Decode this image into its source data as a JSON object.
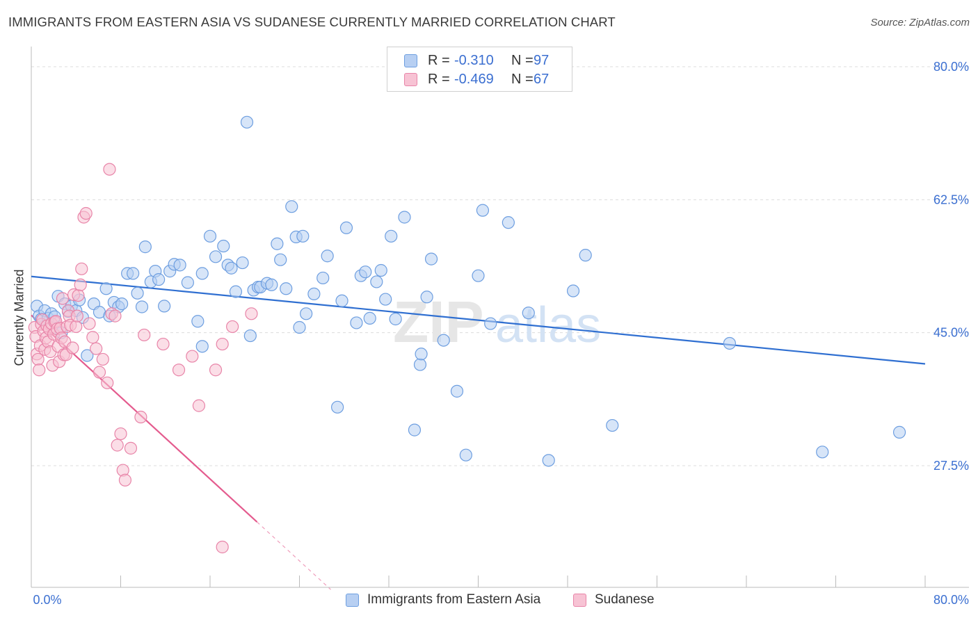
{
  "title": "IMMIGRANTS FROM EASTERN ASIA VS SUDANESE CURRENTLY MARRIED CORRELATION CHART",
  "source": "Source: ZipAtlas.com",
  "watermark": {
    "zip": "ZIP",
    "atlas": "atlas"
  },
  "legend": {
    "rows": [
      {
        "r_label": "R =",
        "r_value": "-0.310",
        "n_label": "N =",
        "n_value": "97"
      },
      {
        "r_label": "R =",
        "r_value": "-0.469",
        "n_label": "N =",
        "n_value": "67"
      }
    ]
  },
  "bottom_legend": [
    "Immigrants from Eastern Asia",
    "Sudanese"
  ],
  "colors": {
    "blue_fill": "#b7cff2",
    "blue_stroke": "#6d9ee0",
    "blue_line": "#2f6fd1",
    "pink_fill": "#f7c3d4",
    "pink_stroke": "#e884a8",
    "pink_line": "#e45b8e",
    "tick_label": "#3b6fd1",
    "grid": "#dcdcdc"
  },
  "chart_data": {
    "type": "scatter",
    "title": "IMMIGRANTS FROM EASTERN ASIA VS SUDANESE CURRENTLY MARRIED CORRELATION CHART",
    "xlabel": "",
    "ylabel": "Currently Married",
    "xlim": [
      0,
      80
    ],
    "ylim": [
      10,
      83
    ],
    "x_tick_labels": [
      "0.0%",
      "80.0%"
    ],
    "y_ticks": [
      27.5,
      45.0,
      62.5,
      80.0
    ],
    "y_tick_labels": [
      "27.5%",
      "45.0%",
      "62.5%",
      "80.0%"
    ],
    "grid": true,
    "legend_position": "top-center",
    "series": [
      {
        "name": "Immigrants from Eastern Asia",
        "color": "#b7cff2",
        "points": [
          [
            0.5,
            48.5
          ],
          [
            0.7,
            47.2
          ],
          [
            0.9,
            46.8
          ],
          [
            1.2,
            47.9
          ],
          [
            1.5,
            46.9
          ],
          [
            1.8,
            47.5
          ],
          [
            2.1,
            47.1
          ],
          [
            2.4,
            49.8
          ],
          [
            2.7,
            45.0
          ],
          [
            3.0,
            48.8
          ],
          [
            3.3,
            47.8
          ],
          [
            3.6,
            48.5
          ],
          [
            4.0,
            47.9
          ],
          [
            4.3,
            49.3
          ],
          [
            4.6,
            47.0
          ],
          [
            5.0,
            42.0
          ],
          [
            5.6,
            48.8
          ],
          [
            6.1,
            47.7
          ],
          [
            6.7,
            50.8
          ],
          [
            7.0,
            47.2
          ],
          [
            7.4,
            49.0
          ],
          [
            7.8,
            48.4
          ],
          [
            8.1,
            48.8
          ],
          [
            8.6,
            52.8
          ],
          [
            9.1,
            52.8
          ],
          [
            9.5,
            50.2
          ],
          [
            9.9,
            48.4
          ],
          [
            10.2,
            56.3
          ],
          [
            10.7,
            51.7
          ],
          [
            11.1,
            53.1
          ],
          [
            11.4,
            52.0
          ],
          [
            11.9,
            48.5
          ],
          [
            12.4,
            53.1
          ],
          [
            12.8,
            54.0
          ],
          [
            13.3,
            53.9
          ],
          [
            14.0,
            51.6
          ],
          [
            14.9,
            46.5
          ],
          [
            15.3,
            52.8
          ],
          [
            15.3,
            43.2
          ],
          [
            16.0,
            57.7
          ],
          [
            16.5,
            55.0
          ],
          [
            17.2,
            56.4
          ],
          [
            17.6,
            53.9
          ],
          [
            17.9,
            53.5
          ],
          [
            18.3,
            50.4
          ],
          [
            18.9,
            54.2
          ],
          [
            19.3,
            72.7
          ],
          [
            19.6,
            44.6
          ],
          [
            19.9,
            50.6
          ],
          [
            20.3,
            51.0
          ],
          [
            20.5,
            51.0
          ],
          [
            21.1,
            51.5
          ],
          [
            21.5,
            51.3
          ],
          [
            22.0,
            56.7
          ],
          [
            22.3,
            54.6
          ],
          [
            22.8,
            50.8
          ],
          [
            23.3,
            61.6
          ],
          [
            23.7,
            57.6
          ],
          [
            24.3,
            57.7
          ],
          [
            24.0,
            45.7
          ],
          [
            24.6,
            47.5
          ],
          [
            25.3,
            50.1
          ],
          [
            26.1,
            52.2
          ],
          [
            26.5,
            55.1
          ],
          [
            27.4,
            35.2
          ],
          [
            27.8,
            49.2
          ],
          [
            28.2,
            58.8
          ],
          [
            29.1,
            46.3
          ],
          [
            29.5,
            52.5
          ],
          [
            29.9,
            53.0
          ],
          [
            30.3,
            46.9
          ],
          [
            30.9,
            51.7
          ],
          [
            31.3,
            53.2
          ],
          [
            31.7,
            49.4
          ],
          [
            32.2,
            57.7
          ],
          [
            32.6,
            46.8
          ],
          [
            33.4,
            60.2
          ],
          [
            34.3,
            32.2
          ],
          [
            34.8,
            40.8
          ],
          [
            34.9,
            42.2
          ],
          [
            35.4,
            49.7
          ],
          [
            35.8,
            54.7
          ],
          [
            36.9,
            44.0
          ],
          [
            38.1,
            37.3
          ],
          [
            38.9,
            28.9
          ],
          [
            40.0,
            52.5
          ],
          [
            40.4,
            61.1
          ],
          [
            41.1,
            46.2
          ],
          [
            42.7,
            59.5
          ],
          [
            44.5,
            47.6
          ],
          [
            46.3,
            28.2
          ],
          [
            48.5,
            50.5
          ],
          [
            49.6,
            55.2
          ],
          [
            52.0,
            32.8
          ],
          [
            62.5,
            43.6
          ],
          [
            70.8,
            29.3
          ],
          [
            77.7,
            31.9
          ]
        ]
      },
      {
        "name": "Sudanese",
        "color": "#f7c3d4",
        "points": [
          [
            0.3,
            45.7
          ],
          [
            0.4,
            44.5
          ],
          [
            0.5,
            42.2
          ],
          [
            0.6,
            41.5
          ],
          [
            0.7,
            40.1
          ],
          [
            0.8,
            43.3
          ],
          [
            0.9,
            46.1
          ],
          [
            1.0,
            46.7
          ],
          [
            1.1,
            45.2
          ],
          [
            1.2,
            42.8
          ],
          [
            1.3,
            44.3
          ],
          [
            1.4,
            45.9
          ],
          [
            1.5,
            43.8
          ],
          [
            1.6,
            45.5
          ],
          [
            1.7,
            42.5
          ],
          [
            1.8,
            46.2
          ],
          [
            1.9,
            40.7
          ],
          [
            2.0,
            44.8
          ],
          [
            2.1,
            46.4
          ],
          [
            2.2,
            46.5
          ],
          [
            2.3,
            45.5
          ],
          [
            2.4,
            43.2
          ],
          [
            2.5,
            41.2
          ],
          [
            2.6,
            45.6
          ],
          [
            2.7,
            44.3
          ],
          [
            2.8,
            49.5
          ],
          [
            2.9,
            42.1
          ],
          [
            3.0,
            43.8
          ],
          [
            3.1,
            42.1
          ],
          [
            3.2,
            45.8
          ],
          [
            3.3,
            47.9
          ],
          [
            3.4,
            47.2
          ],
          [
            3.5,
            46.0
          ],
          [
            3.7,
            43.0
          ],
          [
            3.8,
            50.0
          ],
          [
            4.0,
            45.8
          ],
          [
            4.1,
            47.2
          ],
          [
            4.2,
            49.9
          ],
          [
            4.4,
            51.3
          ],
          [
            4.5,
            53.4
          ],
          [
            4.7,
            60.2
          ],
          [
            4.9,
            60.7
          ],
          [
            5.2,
            46.2
          ],
          [
            5.5,
            44.4
          ],
          [
            5.8,
            42.9
          ],
          [
            6.1,
            39.8
          ],
          [
            6.4,
            41.5
          ],
          [
            6.8,
            38.4
          ],
          [
            7.0,
            66.5
          ],
          [
            7.2,
            47.5
          ],
          [
            7.5,
            47.2
          ],
          [
            7.7,
            30.2
          ],
          [
            8.0,
            31.7
          ],
          [
            8.2,
            26.9
          ],
          [
            8.4,
            25.6
          ],
          [
            8.9,
            29.8
          ],
          [
            9.8,
            33.9
          ],
          [
            10.1,
            44.7
          ],
          [
            11.8,
            43.5
          ],
          [
            13.2,
            40.1
          ],
          [
            14.4,
            41.9
          ],
          [
            15.0,
            35.4
          ],
          [
            16.5,
            40.1
          ],
          [
            17.1,
            43.5
          ],
          [
            17.1,
            16.8
          ],
          [
            18.0,
            45.8
          ],
          [
            19.7,
            47.5
          ]
        ]
      }
    ],
    "trend_lines": [
      {
        "name": "Immigrants from Eastern Asia",
        "x": [
          0,
          80
        ],
        "y": [
          52.4,
          40.9
        ]
      },
      {
        "name": "Sudanese",
        "x": [
          0,
          20.2
        ],
        "y": [
          47.3,
          20.1
        ],
        "dashed_to": [
          26.8,
          11.2
        ]
      }
    ]
  }
}
